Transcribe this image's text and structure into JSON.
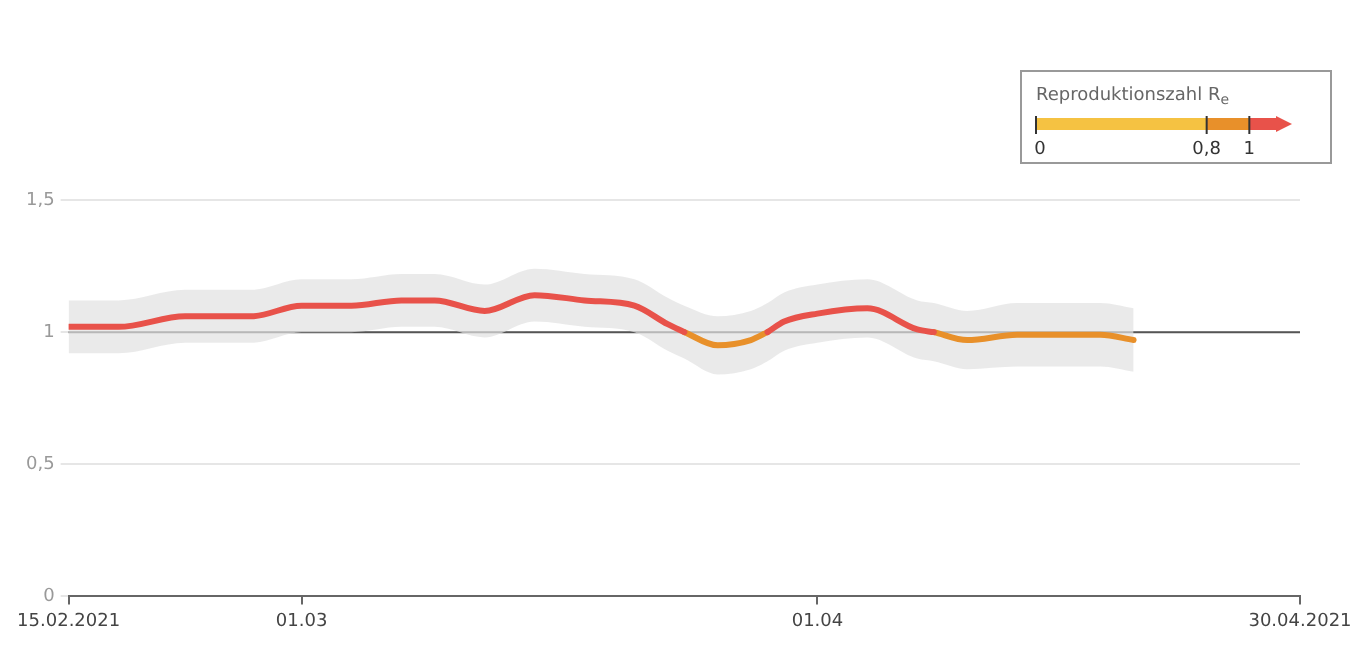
{
  "chart_data": {
    "type": "line",
    "x": [
      "2021-02-15",
      "2021-02-18",
      "2021-02-22",
      "2021-02-26",
      "2021-03-01",
      "2021-03-04",
      "2021-03-07",
      "2021-03-09",
      "2021-03-12",
      "2021-03-15",
      "2021-03-18",
      "2021-03-21",
      "2021-03-23",
      "2021-03-24",
      "2021-03-26",
      "2021-03-28",
      "2021-03-29",
      "2021-03-30",
      "2021-04-01",
      "2021-04-04",
      "2021-04-07",
      "2021-04-08",
      "2021-04-10",
      "2021-04-13",
      "2021-04-18",
      "2021-04-20"
    ],
    "series": [
      {
        "color": "#e8524a",
        "values": [
          1.02,
          1.02,
          1.06,
          1.06,
          1.1,
          1.1,
          1.12,
          1.12,
          1.08,
          1.14,
          1.12,
          1.1,
          1.03,
          1.0,
          null,
          null,
          1.0,
          1.04,
          1.07,
          1.09,
          1.01,
          1.0,
          null,
          null,
          null,
          null
        ],
        "lower": [
          0.92,
          0.92,
          0.96,
          0.96,
          1.0,
          1.0,
          1.02,
          1.02,
          0.98,
          1.04,
          1.02,
          1.0,
          0.93,
          0.9,
          0.84,
          0.86,
          0.89,
          0.93,
          0.96,
          0.98,
          0.9,
          0.89,
          0.86,
          0.87,
          0.87,
          0.85
        ],
        "upper": [
          1.12,
          1.12,
          1.16,
          1.16,
          1.2,
          1.2,
          1.22,
          1.22,
          1.18,
          1.24,
          1.22,
          1.2,
          1.13,
          1.1,
          1.06,
          1.08,
          1.11,
          1.15,
          1.18,
          1.2,
          1.12,
          1.11,
          1.08,
          1.11,
          1.11,
          1.09
        ]
      },
      {
        "color": "#e8902a",
        "values": [
          null,
          null,
          null,
          null,
          null,
          null,
          null,
          null,
          null,
          null,
          null,
          null,
          null,
          1.0,
          0.95,
          0.97,
          1.0,
          null,
          null,
          null,
          null,
          1.0,
          0.97,
          0.99,
          0.99,
          0.97
        ]
      }
    ],
    "xlim": [
      "2021-02-15",
      "2021-04-30"
    ],
    "xticks": [
      {
        "value": "2021-02-15",
        "label": "15.02.2021"
      },
      {
        "value": "2021-03-01",
        "label": "01.03"
      },
      {
        "value": "2021-04-01",
        "label": "01.04"
      },
      {
        "value": "2021-04-30",
        "label": "30.04.2021"
      }
    ],
    "ylim": [
      0,
      1.5
    ],
    "yticks": [
      {
        "value": 0,
        "label": "0"
      },
      {
        "value": 0.5,
        "label": "0,5"
      },
      {
        "value": 1,
        "label": "1"
      },
      {
        "value": 1.5,
        "label": "1,5"
      }
    ],
    "ref_lines": [
      {
        "axis": "y",
        "value": 1,
        "color": "#555555"
      }
    ],
    "clabel": "Reproduktionszahl R$_{e}$",
    "clim": [
      0,
      1.2
    ],
    "cticks": [
      {
        "value": 0,
        "label": "0"
      },
      {
        "value": 0.8,
        "label": "0,8"
      },
      {
        "value": 1,
        "label": "1"
      }
    ],
    "grid": "y",
    "legend": false,
    "marker": "none",
    "line_style": "solid"
  }
}
